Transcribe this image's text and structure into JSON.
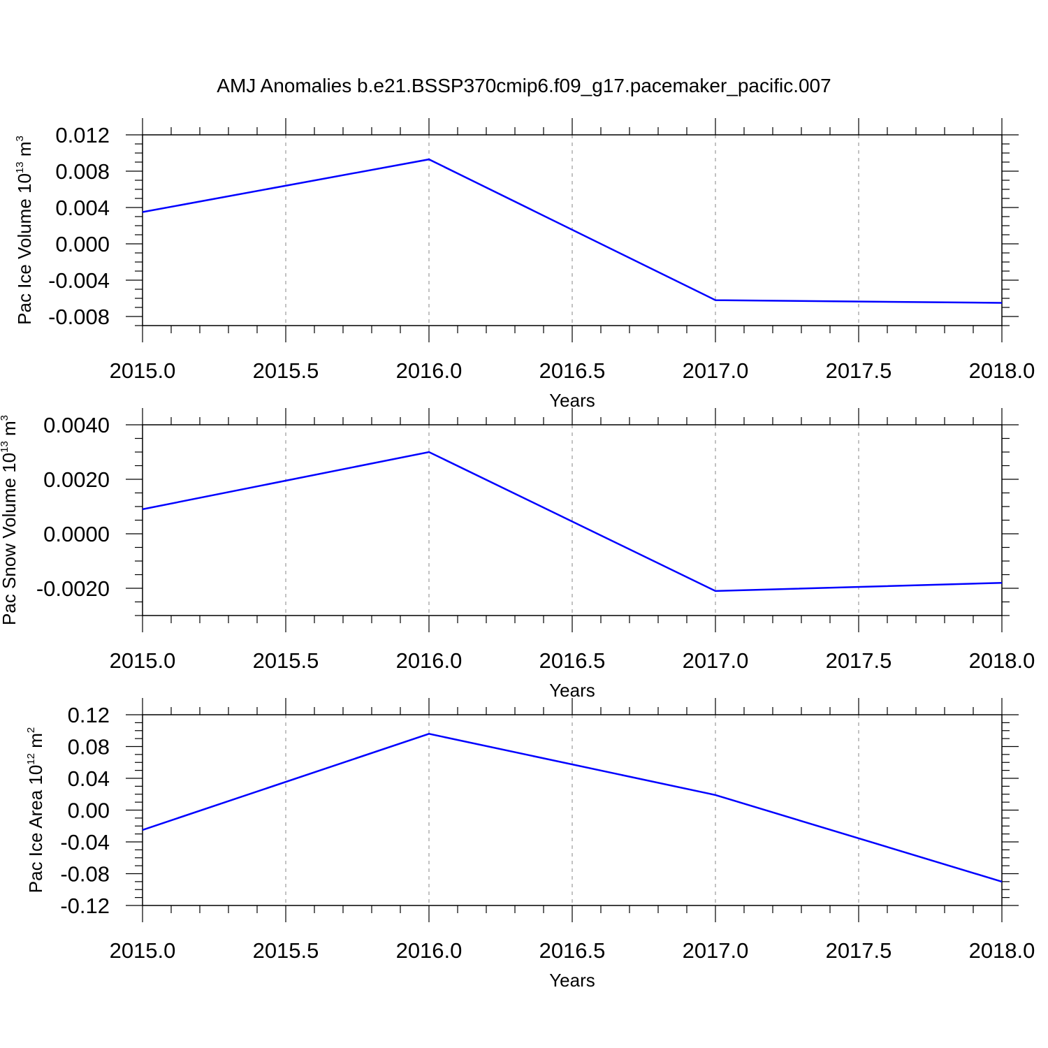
{
  "figure": {
    "title": "AMJ Anomalies b.e21.BSSP370cmip6.f09_g17.pacemaker_pacific.007",
    "line_color": "#0000ff",
    "grid_color": "#999999"
  },
  "chart_data": [
    {
      "type": "line",
      "ylabel": "Pac Ice Volume 10",
      "ylabel_exp": "13",
      "ylabel_unit": " m",
      "ylabel_unit_exp": "3",
      "xlabel": "Years",
      "xlim": [
        2015.0,
        2018.0
      ],
      "ylim": [
        -0.009,
        0.012
      ],
      "x_ticks": [
        2015.0,
        2015.5,
        2016.0,
        2016.5,
        2017.0,
        2017.5,
        2018.0
      ],
      "x_tick_labels": [
        "2015.0",
        "2015.5",
        "2016.0",
        "2016.5",
        "2017.0",
        "2017.5",
        "2018.0"
      ],
      "y_ticks": [
        -0.008,
        -0.004,
        0.0,
        0.004,
        0.008,
        0.012
      ],
      "y_tick_labels": [
        "-0.008",
        "-0.004",
        "0.000",
        "0.004",
        "0.008",
        "0.012"
      ],
      "y_minor_step": 0.001,
      "grid": "vertical dashed",
      "series": [
        {
          "x": [
            2015,
            2016,
            2017,
            2018
          ],
          "values": [
            0.0035,
            0.0093,
            -0.0062,
            -0.0065
          ]
        }
      ]
    },
    {
      "type": "line",
      "ylabel": "Pac Snow Volume 10",
      "ylabel_exp": "13",
      "ylabel_unit": " m",
      "ylabel_unit_exp": "3",
      "xlabel": "Years",
      "xlim": [
        2015.0,
        2018.0
      ],
      "ylim": [
        -0.003,
        0.004
      ],
      "x_ticks": [
        2015.0,
        2015.5,
        2016.0,
        2016.5,
        2017.0,
        2017.5,
        2018.0
      ],
      "x_tick_labels": [
        "2015.0",
        "2015.5",
        "2016.0",
        "2016.5",
        "2017.0",
        "2017.5",
        "2018.0"
      ],
      "y_ticks": [
        -0.002,
        0.0,
        0.002,
        0.004
      ],
      "y_tick_labels": [
        "-0.0020",
        "0.0000",
        "0.0020",
        "0.0040"
      ],
      "y_minor_step": 0.0005,
      "grid": "vertical dashed",
      "series": [
        {
          "x": [
            2015,
            2016,
            2017,
            2018
          ],
          "values": [
            0.0009,
            0.003,
            -0.0021,
            -0.0018
          ]
        }
      ]
    },
    {
      "type": "line",
      "ylabel": "Pac Ice Area 10",
      "ylabel_exp": "12",
      "ylabel_unit": " m",
      "ylabel_unit_exp": "2",
      "xlabel": "Years",
      "xlim": [
        2015.0,
        2018.0
      ],
      "ylim": [
        -0.12,
        0.12
      ],
      "x_ticks": [
        2015.0,
        2015.5,
        2016.0,
        2016.5,
        2017.0,
        2017.5,
        2018.0
      ],
      "x_tick_labels": [
        "2015.0",
        "2015.5",
        "2016.0",
        "2016.5",
        "2017.0",
        "2017.5",
        "2018.0"
      ],
      "y_ticks": [
        -0.12,
        -0.08,
        -0.04,
        0.0,
        0.04,
        0.08,
        0.12
      ],
      "y_tick_labels": [
        "-0.12",
        "-0.08",
        "-0.04",
        "0.00",
        "0.04",
        "0.08",
        "0.12"
      ],
      "y_minor_step": 0.01,
      "grid": "vertical dashed",
      "series": [
        {
          "x": [
            2015,
            2016,
            2017,
            2018
          ],
          "values": [
            -0.025,
            0.096,
            0.019,
            -0.09
          ]
        }
      ]
    }
  ]
}
